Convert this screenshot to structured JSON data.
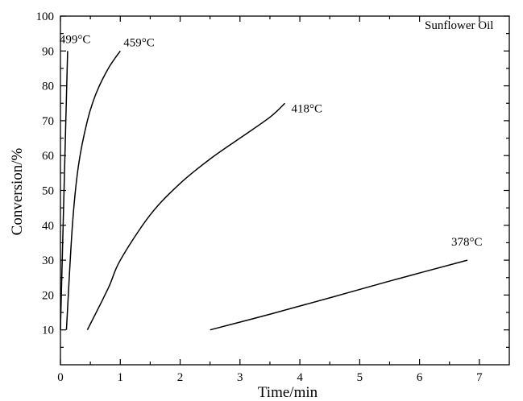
{
  "chart_data": {
    "type": "line",
    "title": "",
    "xlabel": "Time/min",
    "ylabel": "Conversion/%",
    "xlim": [
      0,
      7.5
    ],
    "ylim": [
      0,
      100
    ],
    "x_ticks": [
      0,
      1,
      2,
      3,
      4,
      5,
      6,
      7
    ],
    "y_ticks": [
      10,
      20,
      30,
      40,
      50,
      60,
      70,
      80,
      90,
      100
    ],
    "grid": false,
    "annotation": "Sunflower Oil",
    "series": [
      {
        "name": "499°C",
        "x": [
          0.0,
          0.03,
          0.06,
          0.09,
          0.12
        ],
        "y": [
          10,
          30,
          50,
          70,
          90
        ]
      },
      {
        "name": "459°C",
        "x": [
          0.1,
          0.2,
          0.3,
          0.45,
          0.6,
          0.8,
          1.0
        ],
        "y": [
          10,
          40,
          57,
          70,
          78,
          85,
          90
        ]
      },
      {
        "name": "418°C",
        "x": [
          0.45,
          0.8,
          1.0,
          1.5,
          2.0,
          2.5,
          3.0,
          3.5,
          3.75
        ],
        "y": [
          10,
          22,
          30,
          43,
          52,
          59,
          65,
          71,
          75
        ]
      },
      {
        "name": "378°C",
        "x": [
          2.5,
          3.5,
          4.5,
          5.5,
          6.8
        ],
        "y": [
          10,
          14.5,
          19.2,
          24,
          30
        ]
      }
    ]
  }
}
